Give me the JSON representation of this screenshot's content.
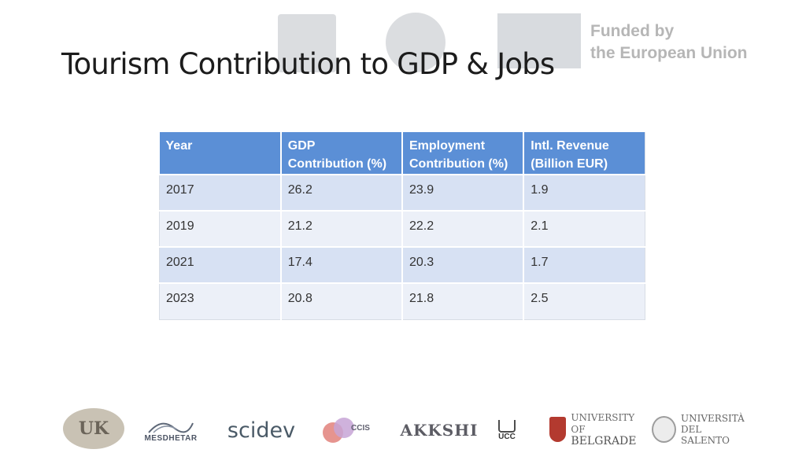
{
  "header": {
    "logos": [
      "partner-logo",
      "partner-logo",
      "eu-flag-logo"
    ],
    "eu_funding_line1": "Funded by",
    "eu_funding_line2": "the European Union"
  },
  "slide": {
    "title": "Tourism Contribution to GDP & Jobs"
  },
  "table": {
    "headers": [
      {
        "line1": "Year",
        "line2": ""
      },
      {
        "line1": "GDP",
        "line2": "Contribution (%)"
      },
      {
        "line1": "Employment",
        "line2": "Contribution (%)"
      },
      {
        "line1": "Intl. Revenue",
        "line2": "(Billion EUR)"
      }
    ],
    "rows": [
      [
        "2017",
        "26.2",
        "23.9",
        "1.9"
      ],
      [
        "2019",
        "21.2",
        "22.2",
        "2.1"
      ],
      [
        "2021",
        "17.4",
        "20.3",
        "1.7"
      ],
      [
        "2023",
        "20.8",
        "21.8",
        "2.5"
      ]
    ],
    "header_color": "#5b8fd6",
    "row_colors": [
      "#d7e1f3",
      "#ecf0f8"
    ]
  },
  "footer": {
    "logo_uk": "UK",
    "logo_mesdhetar": "MESDHETAR",
    "logo_scidev": "scidev",
    "logo_ccis": "CCIS",
    "logo_akkshi": "AKKSHI",
    "logo_ucc": "UCC",
    "logo_belgrade_line1": "UNIVERSITY OF",
    "logo_belgrade_line2": "BELGRADE",
    "logo_salento_line1": "UNIVERSITÀ",
    "logo_salento_line2": "DEL SALENTO"
  }
}
